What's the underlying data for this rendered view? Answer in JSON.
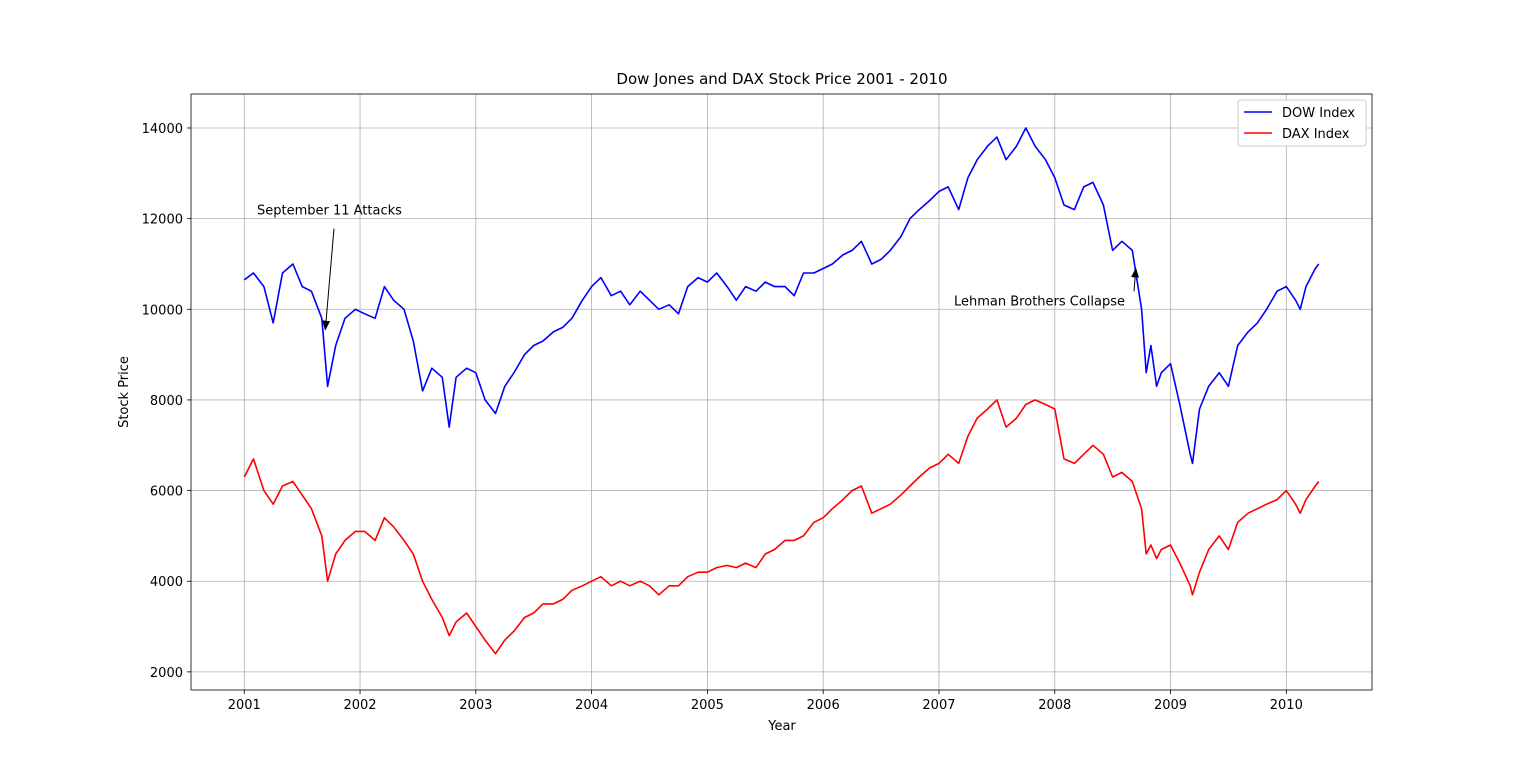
{
  "chart_data": {
    "type": "line",
    "title": "Dow Jones and DAX Stock Price 2001 - 2010",
    "x_label": "Year",
    "y_label": "Stock Price",
    "x": [
      2001.0,
      2001.08,
      2001.17,
      2001.25,
      2001.33,
      2001.42,
      2001.5,
      2001.58,
      2001.67,
      2001.72,
      2001.79,
      2001.87,
      2001.96,
      2002.04,
      2002.13,
      2002.21,
      2002.29,
      2002.38,
      2002.46,
      2002.54,
      2002.62,
      2002.71,
      2002.77,
      2002.83,
      2002.92,
      2003.0,
      2003.08,
      2003.17,
      2003.25,
      2003.33,
      2003.42,
      2003.5,
      2003.58,
      2003.67,
      2003.75,
      2003.83,
      2003.92,
      2004.0,
      2004.08,
      2004.17,
      2004.25,
      2004.33,
      2004.42,
      2004.5,
      2004.58,
      2004.67,
      2004.75,
      2004.83,
      2004.92,
      2005.0,
      2005.08,
      2005.17,
      2005.25,
      2005.33,
      2005.42,
      2005.5,
      2005.58,
      2005.67,
      2005.75,
      2005.83,
      2005.92,
      2006.0,
      2006.08,
      2006.17,
      2006.25,
      2006.33,
      2006.42,
      2006.5,
      2006.58,
      2006.67,
      2006.75,
      2006.83,
      2006.92,
      2007.0,
      2007.08,
      2007.17,
      2007.25,
      2007.33,
      2007.42,
      2007.5,
      2007.58,
      2007.67,
      2007.75,
      2007.83,
      2007.92,
      2008.0,
      2008.08,
      2008.17,
      2008.25,
      2008.33,
      2008.42,
      2008.5,
      2008.58,
      2008.67,
      2008.75,
      2008.79,
      2008.83,
      2008.88,
      2008.92,
      2009.0,
      2009.08,
      2009.17,
      2009.19,
      2009.25,
      2009.33,
      2009.42,
      2009.5,
      2009.58,
      2009.67,
      2009.75,
      2009.83,
      2009.92,
      2010.0,
      2010.08,
      2010.12,
      2010.17,
      2010.25,
      2010.28
    ],
    "series": [
      {
        "name": "DOW Index",
        "color": "#0000ff",
        "values": [
          10650,
          10800,
          10500,
          9700,
          10800,
          11000,
          10500,
          10400,
          9800,
          8300,
          9200,
          9800,
          10000,
          9900,
          9800,
          10500,
          10200,
          10000,
          9300,
          8200,
          8700,
          8500,
          7400,
          8500,
          8700,
          8600,
          8000,
          7700,
          8300,
          8600,
          9000,
          9200,
          9300,
          9500,
          9600,
          9800,
          10200,
          10500,
          10700,
          10300,
          10400,
          10100,
          10400,
          10200,
          10000,
          10100,
          9900,
          10500,
          10700,
          10600,
          10800,
          10500,
          10200,
          10500,
          10400,
          10600,
          10500,
          10500,
          10300,
          10800,
          10800,
          10900,
          11000,
          11200,
          11300,
          11500,
          11000,
          11100,
          11300,
          11600,
          12000,
          12200,
          12400,
          12600,
          12700,
          12200,
          12900,
          13300,
          13600,
          13800,
          13300,
          13600,
          14000,
          13600,
          13300,
          12900,
          12300,
          12200,
          12700,
          12800,
          12300,
          11300,
          11500,
          11300,
          10000,
          8600,
          9200,
          8300,
          8600,
          8800,
          7900,
          6800,
          6600,
          7800,
          8300,
          8600,
          8300,
          9200,
          9500,
          9700,
          10000,
          10400,
          10500,
          10200,
          10000,
          10500,
          10900,
          11000
        ]
      },
      {
        "name": "DAX Index",
        "color": "#ff0000",
        "values": [
          6300,
          6700,
          6000,
          5700,
          6100,
          6200,
          5900,
          5600,
          5000,
          4000,
          4600,
          4900,
          5100,
          5100,
          4900,
          5400,
          5200,
          4900,
          4600,
          4000,
          3600,
          3200,
          2800,
          3100,
          3300,
          3000,
          2700,
          2400,
          2700,
          2900,
          3200,
          3300,
          3500,
          3500,
          3600,
          3800,
          3900,
          4000,
          4100,
          3900,
          4000,
          3900,
          4000,
          3900,
          3700,
          3900,
          3900,
          4100,
          4200,
          4200,
          4300,
          4350,
          4300,
          4400,
          4300,
          4600,
          4700,
          4900,
          4900,
          5000,
          5300,
          5400,
          5600,
          5800,
          6000,
          6100,
          5500,
          5600,
          5700,
          5900,
          6100,
          6300,
          6500,
          6600,
          6800,
          6600,
          7200,
          7600,
          7800,
          8000,
          7400,
          7600,
          7900,
          8000,
          7900,
          7800,
          6700,
          6600,
          6800,
          7000,
          6800,
          6300,
          6400,
          6200,
          5600,
          4600,
          4800,
          4500,
          4700,
          4800,
          4400,
          3900,
          3700,
          4200,
          4700,
          5000,
          4700,
          5300,
          5500,
          5600,
          5700,
          5800,
          6000,
          5700,
          5500,
          5800,
          6100,
          6200
        ]
      }
    ],
    "annotations": [
      {
        "text": "September 11 Attacks",
        "xy": [
          2001.7,
          9550
        ],
        "xytext": [
          2001.11,
          12000
        ]
      },
      {
        "text": "Lehman Brothers Collapse",
        "xy": [
          2008.7,
          10900
        ],
        "xytext": [
          2007.13,
          10000
        ]
      }
    ],
    "xlim": [
      2000.54,
      2010.74
    ],
    "ylim": [
      1600,
      14750
    ],
    "xticks": [
      2001,
      2002,
      2003,
      2004,
      2005,
      2006,
      2007,
      2008,
      2009,
      2010
    ],
    "yticks": [
      2000,
      4000,
      6000,
      8000,
      10000,
      12000,
      14000
    ],
    "grid": true,
    "legend": "upper right"
  }
}
